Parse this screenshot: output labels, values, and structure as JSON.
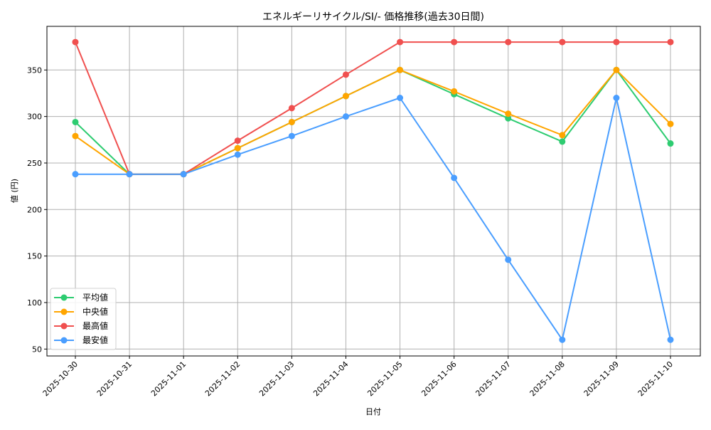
{
  "chart_data": {
    "type": "line",
    "title": "エネルギーリサイクル/SI/- 価格推移(過去30日間)",
    "xlabel": "日付",
    "ylabel": "値 (円)",
    "categories": [
      "2025-10-30",
      "2025-10-31",
      "2025-11-01",
      "2025-11-02",
      "2025-11-03",
      "2025-11-04",
      "2025-11-05",
      "2025-11-06",
      "2025-11-07",
      "2025-11-08",
      "2025-11-09",
      "2025-11-10"
    ],
    "series": [
      {
        "name": "平均値",
        "color": "#2ecc71",
        "values": [
          294,
          238,
          238,
          266,
          294,
          322,
          350,
          324,
          298,
          273,
          350,
          271
        ]
      },
      {
        "name": "中央値",
        "color": "#ffa500",
        "values": [
          279,
          238,
          238,
          266,
          294,
          322,
          350,
          327,
          303,
          280,
          350,
          292
        ]
      },
      {
        "name": "最高値",
        "color": "#f0504f",
        "values": [
          380,
          238,
          238,
          274,
          309,
          345,
          380,
          380,
          380,
          380,
          380,
          380
        ]
      },
      {
        "name": "最安値",
        "color": "#4a9eff",
        "values": [
          238,
          238,
          238,
          259,
          279,
          300,
          320,
          234,
          146,
          60,
          320,
          60
        ]
      }
    ],
    "yticks": [
      50,
      100,
      150,
      200,
      250,
      300,
      350
    ],
    "ylim": [
      43,
      395
    ],
    "grid": true,
    "legend_position": "lower left",
    "marker": "circle"
  }
}
